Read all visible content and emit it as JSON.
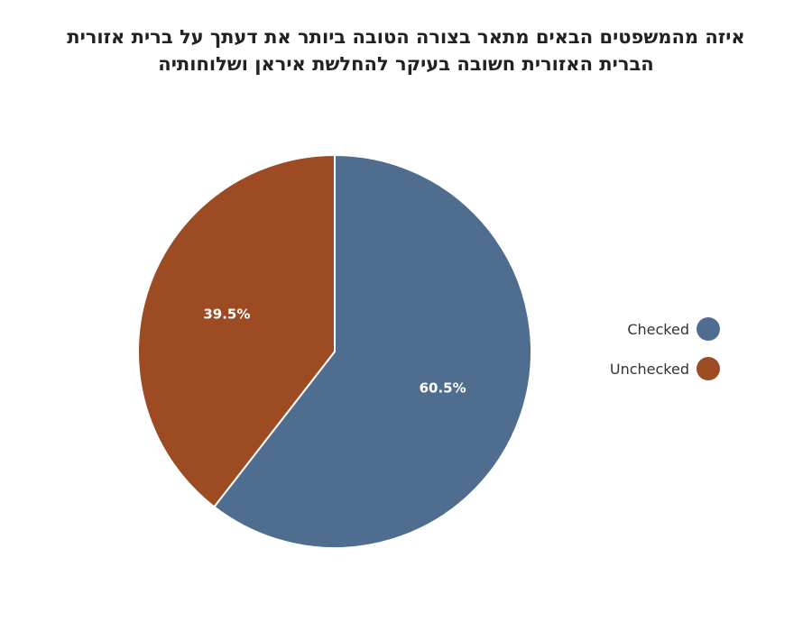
{
  "title": {
    "line1": "איזה מהמשפטים הבאים מתאר בצורה הטובה ביותר את דעתך על ברית אזורית",
    "line2": "הברית האזורית חשובה בעיקר להחלשת איראן ושלוחותיה"
  },
  "chart_data": {
    "type": "pie",
    "title": "איזה מהמשפטים הבאים מתאר בצורה הטובה ביותר את דעתך על ברית אזורית הברית האזורית חשובה בעיקר להחלשת איראן ושלוחותיה",
    "slices": [
      {
        "label": "Checked",
        "value": 60.5,
        "display": "60.5%",
        "color": "#4f6d8f"
      },
      {
        "label": "Unchecked",
        "value": 39.5,
        "display": "39.5%",
        "color": "#9c4b22"
      }
    ],
    "legend_position": "right"
  }
}
